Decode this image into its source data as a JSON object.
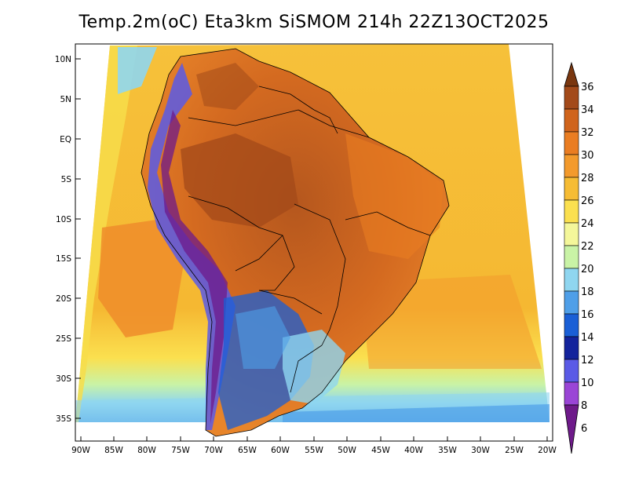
{
  "title": "Temp.2m(oC) Eta3km SiSMOM 214h 22Z13OCT2025",
  "lat_labels": [
    "10N",
    "5N",
    "EQ",
    "5S",
    "10S",
    "15S",
    "20S",
    "25S",
    "30S",
    "35S"
  ],
  "lon_labels": [
    "90W",
    "85W",
    "80W",
    "75W",
    "70W",
    "65W",
    "60W",
    "55W",
    "50W",
    "45W",
    "40W",
    "35W",
    "30W",
    "25W",
    "20W"
  ],
  "colorbar": {
    "labels": [
      "36",
      "34",
      "32",
      "30",
      "28",
      "26",
      "24",
      "22",
      "20",
      "18",
      "16",
      "14",
      "12",
      "10",
      "8",
      "6"
    ],
    "colors": [
      "#7a3710",
      "#a34a1a",
      "#d0641c",
      "#ea7d22",
      "#f39a2c",
      "#f6bc34",
      "#fbe04f",
      "#f4f79a",
      "#c9f3a6",
      "#8fd6f0",
      "#4f9fe8",
      "#1a5fd6",
      "#13239c",
      "#5a5ae6",
      "#9a45d6",
      "#6e1a8a"
    ]
  }
}
